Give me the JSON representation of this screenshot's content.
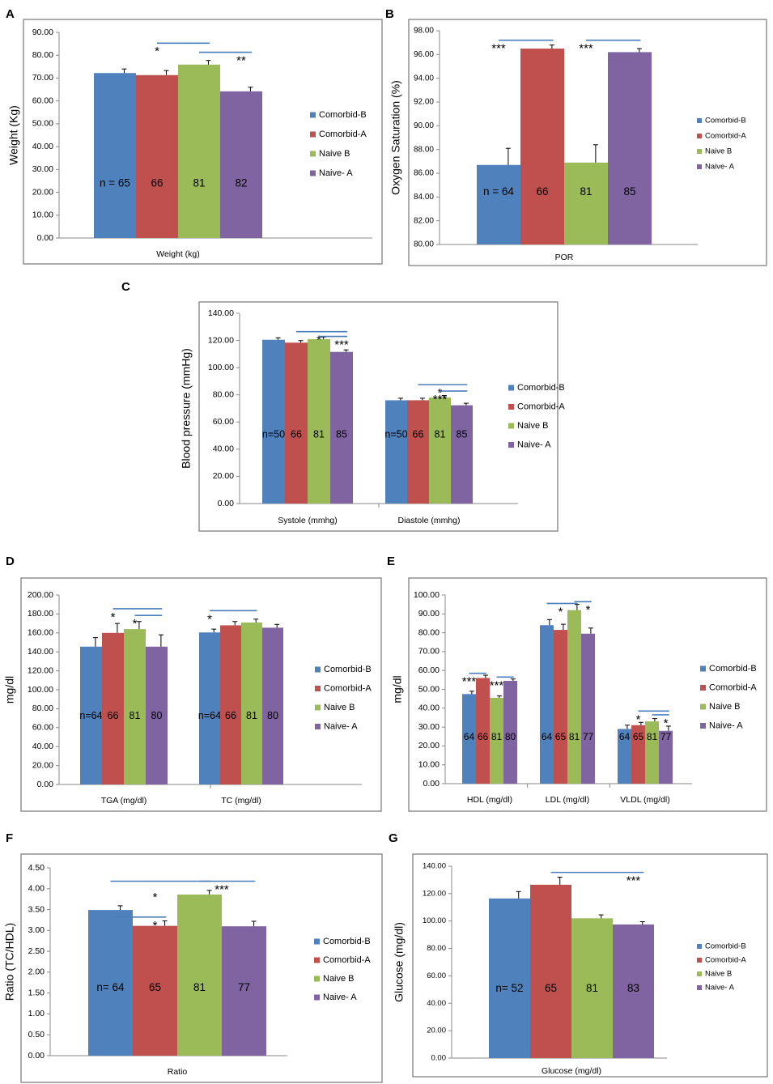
{
  "colors": {
    "comorbid_b": "#4f81bd",
    "comorbid_a": "#c0504d",
    "naive_b": "#9bbb59",
    "naive_a": "#8064a2",
    "sig_line": "#4a7ebb",
    "frame": "#7f7f7f",
    "axis": "#888888"
  },
  "chart_data": [
    {
      "panel": "A",
      "type": "bar",
      "ylabel": "Weight (Kg)",
      "ylim": [
        0,
        90
      ],
      "ytick_step": 10,
      "ytick_decimals": 2,
      "categories": [
        "Weight (kg)"
      ],
      "series": [
        {
          "name": "Comorbid-B",
          "values": [
            72.2
          ],
          "err": [
            1.8
          ],
          "n": [
            "n = 65"
          ]
        },
        {
          "name": "Comorbid-A",
          "values": [
            71.3
          ],
          "err": [
            2.0
          ],
          "n": [
            "66"
          ]
        },
        {
          "name": "Naive B",
          "values": [
            75.9
          ],
          "err": [
            1.8
          ],
          "n": [
            "81"
          ]
        },
        {
          "name": "Naive- A",
          "values": [
            64.2
          ],
          "err": [
            1.8
          ],
          "n": [
            "82"
          ]
        }
      ],
      "significance": [
        {
          "from": 1,
          "to": 2,
          "line_y": 85.3,
          "label": "*",
          "label_cat": 0,
          "label_series": 1
        },
        {
          "from": 2,
          "to": 3,
          "line_y": 81.3,
          "label": "**",
          "label_cat": 0,
          "label_series": 3
        }
      ],
      "legend": "right"
    },
    {
      "panel": "B",
      "type": "bar",
      "ylabel": "Oxygen Saturation (%)",
      "ylim": [
        80,
        98
      ],
      "ytick_step": 2,
      "ytick_decimals": 2,
      "categories": [
        "POR"
      ],
      "series": [
        {
          "name": "Comorbid-B",
          "values": [
            86.7
          ],
          "err": [
            1.4
          ],
          "n": [
            "n = 64"
          ]
        },
        {
          "name": "Comorbid-A",
          "values": [
            96.5
          ],
          "err": [
            0.3
          ],
          "n": [
            "66"
          ]
        },
        {
          "name": "Naive B",
          "values": [
            86.9
          ],
          "err": [
            1.5
          ],
          "n": [
            "81"
          ]
        },
        {
          "name": "Naive- A",
          "values": [
            96.2
          ],
          "err": [
            0.3
          ],
          "n": [
            "85"
          ]
        }
      ],
      "significance": [
        {
          "from": 0,
          "to": 1,
          "line_y": 97.2,
          "label": "***",
          "label_cat": 0,
          "label_series": 0
        },
        {
          "from": 2,
          "to": 3,
          "line_y": 97.2,
          "label": "***",
          "label_cat": 0,
          "label_series": 2
        }
      ],
      "legend": "right"
    },
    {
      "panel": "C",
      "type": "bar",
      "ylabel": "Blood pressure  (mmHg)",
      "ylim": [
        0,
        140
      ],
      "ytick_step": 20,
      "ytick_decimals": 2,
      "categories": [
        "Systole (mmhg)",
        "Diastole (mmhg)"
      ],
      "series": [
        {
          "name": "Comorbid-B",
          "values": [
            120.5,
            76.0
          ],
          "err": [
            1.5,
            1.5
          ],
          "n": [
            "n=50",
            "n=50"
          ]
        },
        {
          "name": "Comorbid-A",
          "values": [
            118.4,
            76.0
          ],
          "err": [
            1.5,
            1.5
          ],
          "n": [
            "66",
            "66"
          ]
        },
        {
          "name": "Naive B",
          "values": [
            121.0,
            78.0
          ],
          "err": [
            1.5,
            1.5
          ],
          "n": [
            "81",
            "81"
          ]
        },
        {
          "name": "Naive- A",
          "values": [
            111.6,
            72.3
          ],
          "err": [
            1.5,
            1.5
          ],
          "n": [
            "85",
            "85"
          ]
        }
      ],
      "significance": [
        {
          "from": 1,
          "to": 3,
          "line_y": 126.5,
          "cat": 0,
          "label": "*",
          "label_cat": 0,
          "label_series": 2
        },
        {
          "from": 2,
          "to": 3,
          "line_y": 123.0,
          "cat": 0,
          "label": "***",
          "label_cat": 0,
          "label_series": 3
        },
        {
          "from": 1,
          "to": 3,
          "line_y": 87.5,
          "cat": 1,
          "label": "*",
          "label_cat": 1,
          "label_series": 2
        },
        {
          "from": 2,
          "to": 3,
          "line_y": 82.8,
          "cat": 1,
          "label": "***",
          "label_cat": 1,
          "label_series": 2
        }
      ],
      "legend": "right"
    },
    {
      "panel": "D",
      "type": "bar",
      "ylabel": "mg/dl",
      "ylim": [
        0,
        200
      ],
      "ytick_step": 20,
      "ytick_decimals": 2,
      "categories": [
        "TGA (mg/dl)",
        "TC (mg/dl)"
      ],
      "series": [
        {
          "name": "Comorbid-B",
          "values": [
            145.5,
            160.5
          ],
          "err": [
            9.5,
            3.5
          ],
          "n": [
            "n=64",
            "n=64"
          ]
        },
        {
          "name": "Comorbid-A",
          "values": [
            160.0,
            168.0
          ],
          "err": [
            10.0,
            4.0
          ],
          "n": [
            "66",
            "66"
          ]
        },
        {
          "name": "Naive B",
          "values": [
            164.0,
            171.0
          ],
          "err": [
            8.0,
            3.5
          ],
          "n": [
            "81",
            "81"
          ]
        },
        {
          "name": "Naive- A",
          "values": [
            145.5,
            165.5
          ],
          "err": [
            12.5,
            3.5
          ],
          "n": [
            "80",
            "80"
          ]
        }
      ],
      "significance": [
        {
          "from": 1,
          "to": 3,
          "line_y": 185.5,
          "cat": 0,
          "label": "*",
          "label_cat": 0,
          "label_series": 1
        },
        {
          "from": 2,
          "to": 3,
          "line_y": 178.5,
          "cat": 0,
          "label": "*",
          "label_cat": 0,
          "label_series": 2
        },
        {
          "from": 0,
          "to": 2,
          "line_y": 183.5,
          "cat": 1,
          "label": "*",
          "label_cat": 1,
          "label_series": 0
        }
      ],
      "legend": "right"
    },
    {
      "panel": "E",
      "type": "bar",
      "ylabel": "mg/dl",
      "ylim": [
        0,
        100
      ],
      "ytick_step": 10,
      "ytick_decimals": 2,
      "categories": [
        "HDL (mg/dl)",
        "LDL (mg/dl)",
        "VLDL (mg/dl)"
      ],
      "series": [
        {
          "name": "Comorbid-B",
          "values": [
            47.5,
            84.0,
            29.0
          ],
          "err": [
            1.5,
            3.0,
            2.0
          ],
          "n": [
            "64",
            "64",
            "64"
          ]
        },
        {
          "name": "Comorbid-A",
          "values": [
            56.0,
            81.5,
            31.0
          ],
          "err": [
            1.5,
            3.0,
            1.5
          ],
          "n": [
            "66",
            "65",
            "65"
          ]
        },
        {
          "name": "Naive B",
          "values": [
            45.5,
            92.0,
            33.0
          ],
          "err": [
            1.0,
            3.0,
            1.5
          ],
          "n": [
            "81",
            "81",
            "81"
          ]
        },
        {
          "name": "Naive- A",
          "values": [
            54.5,
            79.5,
            28.0
          ],
          "err": [
            1.0,
            3.0,
            2.5
          ],
          "n": [
            "80",
            "77",
            "77"
          ]
        }
      ],
      "significance": [
        {
          "from": 0,
          "to": 1,
          "line_y": 58.5,
          "cat": 0,
          "label": "***",
          "label_cat": 0,
          "label_series": 0
        },
        {
          "from": 2,
          "to": 3,
          "line_y": 56.5,
          "cat": 0,
          "label": "***",
          "label_cat": 0,
          "label_series": 2
        },
        {
          "from": 0,
          "to": 2,
          "line_y": 95.5,
          "cat": 1,
          "label": "*",
          "label_cat": 1,
          "label_series": 1
        },
        {
          "from": 2,
          "to": 3,
          "line_y": 96.5,
          "cat": 1,
          "label": "*",
          "label_cat": 1,
          "label_series": 3
        },
        {
          "from": 1,
          "to": 3,
          "line_y": 38.5,
          "cat": 2,
          "label": "*",
          "label_cat": 2,
          "label_series": 1
        },
        {
          "from": 2,
          "to": 3,
          "line_y": 36.5,
          "cat": 2,
          "label": "*",
          "label_cat": 2,
          "label_series": 3
        }
      ],
      "legend": "right"
    },
    {
      "panel": "F",
      "type": "bar",
      "ylabel": "Ratio (TC/HDL)",
      "ylim": [
        0,
        4.5
      ],
      "ytick_step": 0.5,
      "ytick_decimals": 2,
      "categories": [
        "Ratio"
      ],
      "series": [
        {
          "name": "Comorbid-B",
          "values": [
            3.49
          ],
          "err": [
            0.1
          ],
          "n": [
            "n=  64"
          ]
        },
        {
          "name": "Comorbid-A",
          "values": [
            3.11
          ],
          "err": [
            0.12
          ],
          "n": [
            "65"
          ]
        },
        {
          "name": "Naive B",
          "values": [
            3.86
          ],
          "err": [
            0.1
          ],
          "n": [
            "81"
          ]
        },
        {
          "name": "Naive- A",
          "values": [
            3.1
          ],
          "err": [
            0.12
          ],
          "n": [
            "77"
          ]
        }
      ],
      "significance": [
        {
          "from": 0,
          "to": 2,
          "line_y": 4.18,
          "label": "*",
          "label_cat": 0,
          "label_series": 1,
          "label_y": 3.78
        },
        {
          "from": 0,
          "to": 1,
          "line_y": 3.32,
          "label": "*",
          "label_cat": 0,
          "label_series": 1
        },
        {
          "from": 2,
          "to": 3,
          "line_y": 4.18,
          "label": "***",
          "label_cat": 0,
          "label_series": 2,
          "label_dx": 0.5
        }
      ],
      "legend": "right"
    },
    {
      "panel": "G",
      "type": "bar",
      "ylabel": "Glucose (mg/dl)",
      "ylim": [
        0,
        140
      ],
      "ytick_step": 20,
      "ytick_decimals": 2,
      "categories": [
        "Glucose (mg/dl)"
      ],
      "series": [
        {
          "name": "Comorbid-B",
          "values": [
            116.5
          ],
          "err": [
            5.0
          ],
          "n": [
            "n=  52"
          ]
        },
        {
          "name": "Comorbid-A",
          "values": [
            126.5
          ],
          "err": [
            5.5
          ],
          "n": [
            "65"
          ]
        },
        {
          "name": "Naive B",
          "values": [
            102.0
          ],
          "err": [
            2.5
          ],
          "n": [
            "81"
          ]
        },
        {
          "name": "Naive- A",
          "values": [
            97.5
          ],
          "err": [
            2.0
          ],
          "n": [
            "83"
          ]
        }
      ],
      "significance": [
        {
          "from": 1,
          "to": 3,
          "line_y": 135.5,
          "label": "***",
          "label_cat": 0,
          "label_series": 3
        }
      ],
      "legend": "right"
    }
  ]
}
